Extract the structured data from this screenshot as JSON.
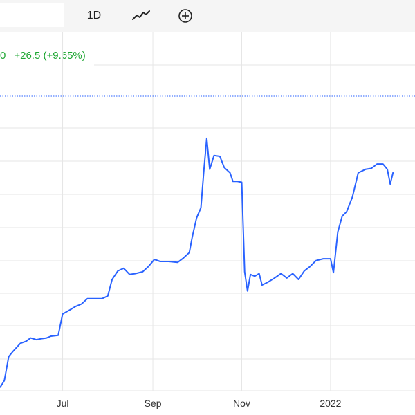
{
  "toolbar": {
    "interval_label": "1D",
    "chart_type_icon": "line-chart-icon",
    "compare_icon": "plus-circle-icon"
  },
  "quote": {
    "last_fragment": "0",
    "change_text": "+26.5 (+9.65%)"
  },
  "colors": {
    "line": "#2962ff",
    "positive": "#1ea632",
    "grid": "#e6e6e6",
    "previous_close": "#2962ff"
  },
  "chart_data": {
    "type": "line",
    "x_tick_labels": [
      "Jul",
      "Sep",
      "Nov",
      "2022"
    ],
    "x_range": [
      "2021-05-19",
      "2022-02-28"
    ],
    "y_range": [
      0,
      100
    ],
    "grid": true,
    "series": [
      {
        "values": [
          [
            "2021-05-19",
            1.1
          ],
          [
            "2021-05-22",
            3.5
          ],
          [
            "2021-05-25",
            11.6
          ],
          [
            "2021-05-28",
            13.4
          ],
          [
            "2021-06-02",
            16.1
          ],
          [
            "2021-06-06",
            16.8
          ],
          [
            "2021-06-09",
            17.9
          ],
          [
            "2021-06-13",
            17.3
          ],
          [
            "2021-06-16",
            17.6
          ],
          [
            "2021-06-20",
            17.9
          ],
          [
            "2021-06-23",
            18.5
          ],
          [
            "2021-06-28",
            18.8
          ],
          [
            "2021-07-01",
            26.0
          ],
          [
            "2021-07-06",
            27.4
          ],
          [
            "2021-07-10",
            28.6
          ],
          [
            "2021-07-14",
            29.4
          ],
          [
            "2021-07-18",
            31.2
          ],
          [
            "2021-07-24",
            31.2
          ],
          [
            "2021-07-28",
            31.2
          ],
          [
            "2021-08-01",
            32.1
          ],
          [
            "2021-08-04",
            37.7
          ],
          [
            "2021-08-08",
            40.6
          ],
          [
            "2021-08-12",
            41.5
          ],
          [
            "2021-08-16",
            39.4
          ],
          [
            "2021-08-20",
            39.7
          ],
          [
            "2021-08-25",
            40.3
          ],
          [
            "2021-08-29",
            42.1
          ],
          [
            "2021-09-02",
            44.5
          ],
          [
            "2021-09-06",
            43.8
          ],
          [
            "2021-09-12",
            43.8
          ],
          [
            "2021-09-18",
            43.5
          ],
          [
            "2021-09-22",
            45.0
          ],
          [
            "2021-09-26",
            46.8
          ],
          [
            "2021-09-28",
            52.0
          ],
          [
            "2021-10-01",
            58.5
          ],
          [
            "2021-10-04",
            62.0
          ],
          [
            "2021-10-06",
            74.4
          ],
          [
            "2021-10-08",
            85.5
          ],
          [
            "2021-10-10",
            75.0
          ],
          [
            "2021-10-13",
            79.7
          ],
          [
            "2021-10-17",
            79.4
          ],
          [
            "2021-10-20",
            75.6
          ],
          [
            "2021-10-24",
            73.8
          ],
          [
            "2021-10-26",
            70.9
          ],
          [
            "2021-10-29",
            70.9
          ],
          [
            "2021-11-01",
            70.6
          ],
          [
            "2021-11-03",
            40.3
          ],
          [
            "2021-11-05",
            33.8
          ],
          [
            "2021-11-07",
            39.4
          ],
          [
            "2021-11-10",
            38.8
          ],
          [
            "2021-11-13",
            39.7
          ],
          [
            "2021-11-15",
            35.8
          ],
          [
            "2021-11-19",
            36.8
          ],
          [
            "2021-11-23",
            38.0
          ],
          [
            "2021-11-28",
            39.7
          ],
          [
            "2021-12-02",
            38.2
          ],
          [
            "2021-12-06",
            39.7
          ],
          [
            "2021-12-10",
            37.7
          ],
          [
            "2021-12-14",
            40.6
          ],
          [
            "2021-12-18",
            42.1
          ],
          [
            "2021-12-22",
            44.1
          ],
          [
            "2021-12-27",
            44.7
          ],
          [
            "2022-01-01",
            44.7
          ],
          [
            "2022-01-03",
            40.0
          ],
          [
            "2022-01-06",
            53.8
          ],
          [
            "2022-01-09",
            59.1
          ],
          [
            "2022-01-12",
            60.6
          ],
          [
            "2022-01-16",
            65.6
          ],
          [
            "2022-01-20",
            73.8
          ],
          [
            "2022-01-25",
            75.0
          ],
          [
            "2022-01-29",
            75.3
          ],
          [
            "2022-02-02",
            76.8
          ],
          [
            "2022-02-06",
            76.8
          ],
          [
            "2022-02-09",
            75.0
          ],
          [
            "2022-02-11",
            70.0
          ],
          [
            "2022-02-13",
            74.0
          ]
        ]
      }
    ]
  }
}
